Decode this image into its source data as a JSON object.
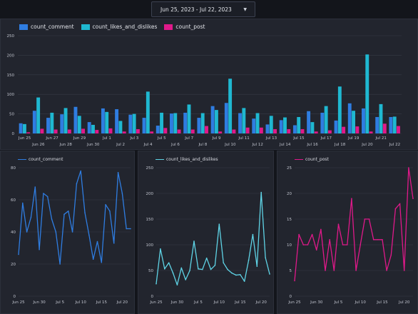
{
  "date_range": {
    "label": "Jun 25, 2023 - Jul 22, 2023"
  },
  "colors": {
    "comment": "#2f7de1",
    "likes": "#1fb8d1",
    "post": "#e0198a",
    "grid": "#363a46",
    "axis_text": "#c2c5cf"
  },
  "top_legend": {
    "comment": "count_comment",
    "likes": "count_likes_and_dislikes",
    "post": "count_post"
  },
  "chart_data": [
    {
      "type": "bar",
      "categories": [
        "Jun 25",
        "Jun 26",
        "Jun 27",
        "Jun 28",
        "Jun 29",
        "Jun 30",
        "Jul 1",
        "Jul 2",
        "Jul 3",
        "Jul 4",
        "Jul 5",
        "Jul 6",
        "Jul 7",
        "Jul 8",
        "Jul 9",
        "Jul 10",
        "Jul 11",
        "Jul 12",
        "Jul 13",
        "Jul 14",
        "Jul 15",
        "Jul 16",
        "Jul 17",
        "Jul 18",
        "Jul 19",
        "Jul 20",
        "Jul 21",
        "Jul 22"
      ],
      "series": [
        {
          "name": "count_comment",
          "values": [
            26,
            58,
            40,
            49,
            68,
            29,
            64,
            62,
            48,
            40,
            20,
            51,
            53,
            40,
            70,
            78,
            52,
            38,
            23,
            34,
            21,
            57,
            53,
            33,
            77,
            64,
            42,
            42
          ]
        },
        {
          "name": "count_likes_and_dislikes",
          "values": [
            24,
            92,
            53,
            65,
            45,
            22,
            55,
            32,
            50,
            107,
            53,
            52,
            74,
            52,
            60,
            140,
            65,
            52,
            45,
            41,
            42,
            29,
            70,
            120,
            58,
            202,
            75,
            43
          ]
        },
        {
          "name": "count_post",
          "values": [
            3,
            12,
            10,
            10,
            12,
            9,
            13,
            5,
            11,
            5,
            14,
            10,
            10,
            19,
            5,
            10,
            15,
            15,
            11,
            11,
            11,
            5,
            8,
            17,
            18,
            5,
            25,
            19
          ]
        }
      ],
      "ylim": [
        0,
        250
      ],
      "yticks": [
        0,
        50,
        100,
        150,
        200,
        250
      ],
      "xticks_upper": [
        "Jun 25",
        "Jun 27",
        "Jun 29",
        "Jul 1",
        "Jul 3",
        "Jul 5",
        "Jul 7",
        "Jul 9",
        "Jul 11",
        "Jul 13",
        "Jul 15",
        "Jul 17",
        "Jul 19",
        "Jul 21"
      ],
      "xticks_lower": [
        "Jun 26",
        "Jun 28",
        "Jun 30",
        "Jul 2",
        "Jul 4",
        "Jul 6",
        "Jul 8",
        "Jul 10",
        "Jul 12",
        "Jul 14",
        "Jul 16",
        "Jul 18",
        "Jul 20",
        "Jul 22"
      ],
      "legend_position": "top-left"
    },
    {
      "type": "line",
      "series": [
        {
          "name": "count_comment",
          "values": [
            26,
            58,
            40,
            49,
            68,
            29,
            64,
            62,
            48,
            40,
            20,
            51,
            53,
            40,
            70,
            78,
            52,
            38,
            23,
            34,
            21,
            57,
            53,
            33,
            77,
            64,
            42,
            42
          ]
        }
      ],
      "ylim": [
        0,
        80
      ],
      "yticks": [
        0,
        20,
        40,
        60,
        80
      ],
      "xticks": [
        "Jun 25",
        "Jun 30",
        "Jul 5",
        "Jul 10",
        "Jul 15",
        "Jul 20"
      ]
    },
    {
      "type": "line",
      "series": [
        {
          "name": "count_likes_and_dislikes",
          "values": [
            24,
            92,
            53,
            65,
            45,
            22,
            55,
            32,
            50,
            107,
            53,
            52,
            74,
            52,
            60,
            140,
            65,
            52,
            45,
            41,
            42,
            29,
            70,
            120,
            58,
            202,
            75,
            43
          ]
        }
      ],
      "ylim": [
        0,
        250
      ],
      "yticks": [
        0,
        50,
        100,
        150,
        200,
        250
      ],
      "xticks": [
        "Jun 25",
        "Jun 30",
        "Jul 5",
        "Jul 10",
        "Jul 15",
        "Jul 20"
      ]
    },
    {
      "type": "line",
      "series": [
        {
          "name": "count_post",
          "values": [
            3,
            12,
            10,
            10,
            12,
            9,
            13,
            5,
            11,
            5,
            14,
            10,
            10,
            19,
            5,
            10,
            15,
            15,
            11,
            11,
            11,
            5,
            8,
            17,
            18,
            5,
            25,
            19
          ]
        }
      ],
      "ylim": [
        0,
        25
      ],
      "yticks": [
        0,
        5,
        10,
        15,
        20,
        25
      ],
      "xticks": [
        "Jun 25",
        "Jun 30",
        "Jul 5",
        "Jul 10",
        "Jul 15",
        "Jul 20"
      ]
    }
  ]
}
